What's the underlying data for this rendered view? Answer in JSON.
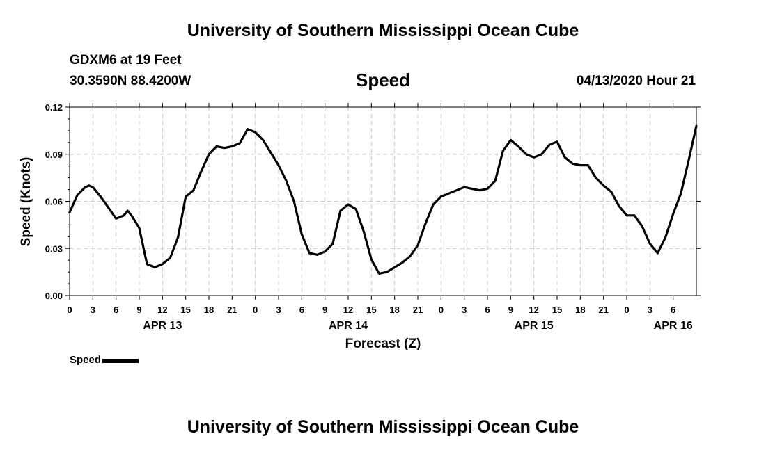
{
  "header": {
    "title": "University of Southern Mississippi Ocean Cube",
    "station": "GDXM6 at 19 Feet",
    "coords": "30.3590N 88.4200W",
    "variable": "Speed",
    "datetime": "04/13/2020 Hour 21"
  },
  "footer": {
    "title": "University of Southern Mississippi Ocean Cube"
  },
  "legend": {
    "label": "Speed"
  },
  "chart_data": {
    "type": "line",
    "title": "Speed",
    "xlabel": "Forecast (Z)",
    "ylabel": "Speed (Knots)",
    "xlim": [
      0,
      81
    ],
    "ylim": [
      0,
      0.12
    ],
    "yticks": [
      "0.00",
      "0.03",
      "0.06",
      "0.09",
      "0.12"
    ],
    "xticks": [
      "0",
      "3",
      "6",
      "9",
      "12",
      "15",
      "18",
      "21",
      "0",
      "3",
      "6",
      "9",
      "12",
      "15",
      "18",
      "21",
      "0",
      "3",
      "6",
      "9",
      "12",
      "15",
      "18",
      "21",
      "0",
      "3",
      "6"
    ],
    "date_labels": [
      {
        "label": "APR 13",
        "hour": 12
      },
      {
        "label": "APR 14",
        "hour": 36
      },
      {
        "label": "APR 15",
        "hour": 60
      },
      {
        "label": "APR 16",
        "hour": 78
      }
    ],
    "grid": true,
    "series": [
      {
        "name": "Speed",
        "color": "#000000",
        "x": [
          0,
          1,
          2,
          2.5,
          3,
          4,
          5,
          6,
          7,
          7.5,
          8,
          9,
          10,
          11,
          12,
          13,
          14,
          15,
          16,
          17,
          18,
          19,
          20,
          21,
          22,
          23,
          24,
          25,
          26,
          27,
          28,
          29,
          30,
          31,
          32,
          33,
          34,
          35,
          36,
          37,
          38,
          39,
          40,
          41,
          42,
          43,
          44,
          45,
          46,
          47,
          48,
          49,
          50,
          51,
          52,
          53,
          54,
          55,
          56,
          57,
          58,
          59,
          60,
          61,
          62,
          63,
          64,
          65,
          66,
          67,
          68,
          69,
          70,
          71,
          72,
          73,
          74,
          75,
          76,
          77,
          78,
          79,
          80,
          81
        ],
        "values": [
          0.053,
          0.064,
          0.069,
          0.07,
          0.069,
          0.063,
          0.056,
          0.049,
          0.051,
          0.054,
          0.051,
          0.043,
          0.02,
          0.018,
          0.02,
          0.024,
          0.037,
          0.063,
          0.067,
          0.079,
          0.09,
          0.095,
          0.094,
          0.095,
          0.097,
          0.106,
          0.104,
          0.099,
          0.091,
          0.083,
          0.073,
          0.06,
          0.039,
          0.027,
          0.026,
          0.028,
          0.033,
          0.054,
          0.058,
          0.055,
          0.041,
          0.023,
          0.014,
          0.015,
          0.018,
          0.021,
          0.025,
          0.032,
          0.046,
          0.058,
          0.063,
          0.065,
          0.067,
          0.069,
          0.068,
          0.067,
          0.068,
          0.073,
          0.092,
          0.099,
          0.095,
          0.09,
          0.088,
          0.09,
          0.096,
          0.098,
          0.088,
          0.084,
          0.083,
          0.083,
          0.075,
          0.07,
          0.066,
          0.057,
          0.051,
          0.051,
          0.044,
          0.033,
          0.027,
          0.037,
          0.052,
          0.065,
          0.086,
          0.108
        ]
      }
    ]
  }
}
